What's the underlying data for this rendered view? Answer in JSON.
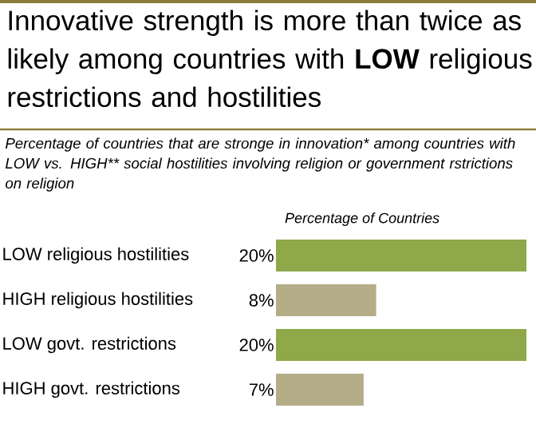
{
  "chart_data": {
    "type": "bar",
    "orientation": "horizontal",
    "title": "Innovative strength is more than twice as likely among countries with **LOW** religious restrictions and hostilities",
    "subtitle": "Percentage of countries that are stronge in innovation* among countries with LOW vs. HIGH** social hostilities involving religion or government rstrictions on religion",
    "xlabel": "Percentage of Countries",
    "categories": [
      "LOW religious hostilities",
      "HIGH religious hostilities",
      "LOW govt. restrictions",
      "HIGH govt. restrictions"
    ],
    "values": [
      20,
      8,
      20,
      7
    ],
    "colors": [
      "#8ea84a",
      "#b5ad88",
      "#8ea84a",
      "#b5ad88"
    ],
    "value_labels": [
      "20%",
      "8%",
      "20%",
      "7%"
    ]
  }
}
